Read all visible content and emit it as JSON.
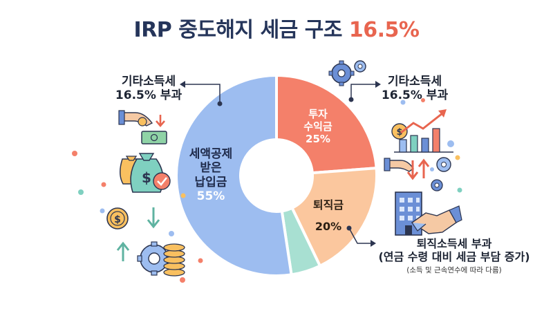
{
  "title": {
    "main": "IRP 중도해지 세금 구조",
    "accent": "16.5%"
  },
  "chart_data": {
    "type": "pie",
    "variant": "donut",
    "title": "IRP 중도해지 세금 구조 16.5%",
    "slices": [
      {
        "label": "투자 수익금",
        "value": 25,
        "display": "25%",
        "color": "#f4806a"
      },
      {
        "label": "퇴직금",
        "value": 20,
        "display": "20%",
        "color": "#fbc79e"
      },
      {
        "label": "",
        "value": 5,
        "display": "",
        "color": "#a8e0d2"
      },
      {
        "label": "세액공제 받은 납입금",
        "value": 55,
        "display": "55%",
        "color": "#9dbdf0"
      }
    ]
  },
  "slice_labels": {
    "blue": {
      "line1": "세액공제",
      "line2": "받은",
      "line3": "납입금",
      "pct": "55%"
    },
    "red": {
      "line1": "투자",
      "line2": "수익금",
      "pct": "25%"
    },
    "orange": {
      "line1": "퇴직금",
      "pct": "20%"
    }
  },
  "annotations": {
    "left": {
      "line1": "기타소득세",
      "line2": "16.5% 부과"
    },
    "right": {
      "line1": "기타소득세",
      "line2": "16.5% 부과"
    },
    "bottom": {
      "line1": "퇴직소득세 부과",
      "line2": "(연금 수령 대비 세금 부담 증가)",
      "note": "(소득 및 근속연수에 따라 다름)"
    }
  },
  "icons": [
    "money-hand-icon",
    "money-bags-icon",
    "coins-gear-icon",
    "gears-icon",
    "growth-chart-icon",
    "building-handshake-icon"
  ],
  "colors": {
    "title": "#25355a",
    "accent": "#e8654f"
  }
}
